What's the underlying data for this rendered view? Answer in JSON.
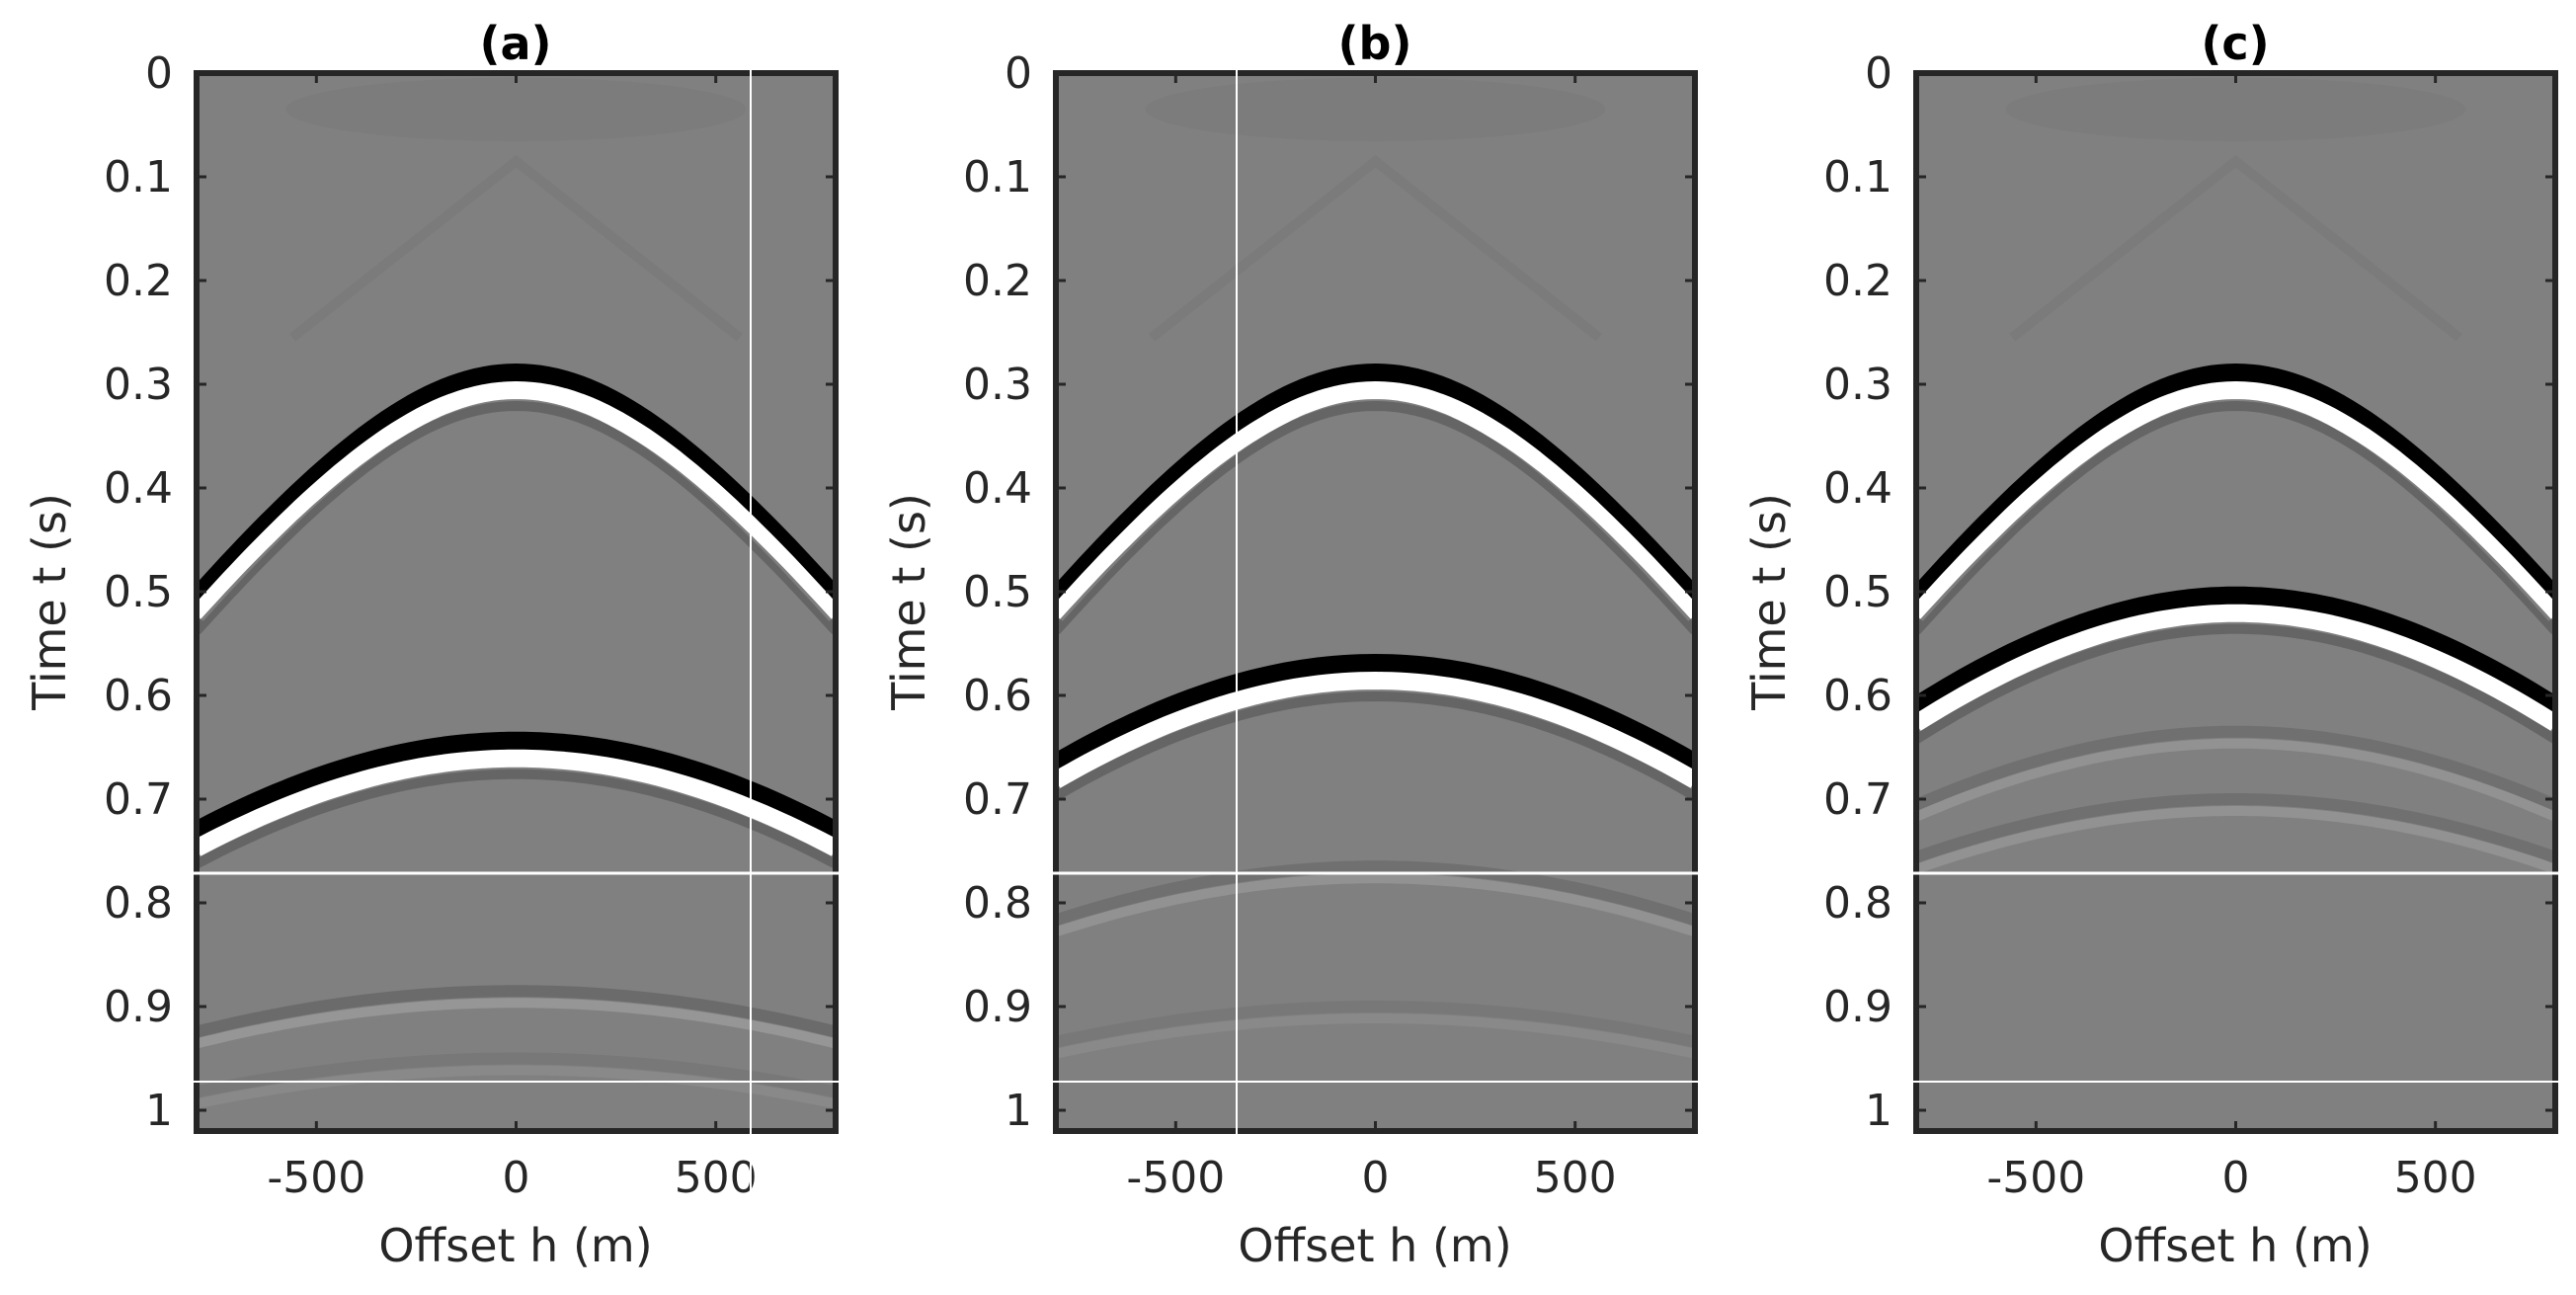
{
  "chart_data": [
    {
      "type": "heatmap",
      "title": "(a)",
      "xlabel": "Offset h (m)",
      "ylabel": "Time t (s)",
      "xlim": [
        -800,
        800
      ],
      "ylim": [
        0,
        1.02
      ],
      "xticks": [
        -500,
        0,
        500
      ],
      "xtick_labels": [
        "-500",
        "0",
        "500"
      ],
      "yticks": [
        0,
        0.1,
        0.2,
        0.3,
        0.4,
        0.5,
        0.6,
        0.7,
        0.8,
        0.9,
        1
      ],
      "ytick_labels": [
        "0",
        "0.1",
        "0.2",
        "0.3",
        "0.4",
        "0.5",
        "0.6",
        "0.7",
        "0.8",
        "0.9",
        "1"
      ],
      "colormap": "gray",
      "events": [
        {
          "name": "reflection-1",
          "t0": 0.3,
          "velocity": 1900,
          "strength": 1.0
        },
        {
          "name": "reflection-2",
          "t0": 0.655,
          "velocity": 2300,
          "strength": 1.0
        },
        {
          "name": "weak-event",
          "t0": 0.885,
          "velocity": 3000,
          "strength": 0.25
        },
        {
          "name": "weak-event",
          "t0": 0.95,
          "velocity": 3200,
          "strength": 0.1
        }
      ]
    },
    {
      "type": "heatmap",
      "title": "(b)",
      "xlabel": "Offset h (m)",
      "ylabel": "Time t (s)",
      "xlim": [
        -800,
        800
      ],
      "ylim": [
        0,
        1.02
      ],
      "xticks": [
        -500,
        0,
        500
      ],
      "xtick_labels": [
        "-500",
        "0",
        "500"
      ],
      "yticks": [
        0,
        0.1,
        0.2,
        0.3,
        0.4,
        0.5,
        0.6,
        0.7,
        0.8,
        0.9,
        1
      ],
      "ytick_labels": [
        "0",
        "0.1",
        "0.2",
        "0.3",
        "0.4",
        "0.5",
        "0.6",
        "0.7",
        "0.8",
        "0.9",
        "1"
      ],
      "colormap": "gray",
      "events": [
        {
          "name": "reflection-1",
          "t0": 0.3,
          "velocity": 1900,
          "strength": 1.0
        },
        {
          "name": "reflection-2",
          "t0": 0.58,
          "velocity": 2300,
          "strength": 1.0
        },
        {
          "name": "weak-event",
          "t0": 0.765,
          "velocity": 2800,
          "strength": 0.2
        },
        {
          "name": "weak-event",
          "t0": 0.9,
          "velocity": 3200,
          "strength": 0.1
        }
      ]
    },
    {
      "type": "heatmap",
      "title": "(c)",
      "xlabel": "Offset h (m)",
      "ylabel": "Time t (s)",
      "xlim": [
        -800,
        800
      ],
      "ylim": [
        0,
        1.02
      ],
      "xticks": [
        -500,
        0,
        500
      ],
      "xtick_labels": [
        "-500",
        "0",
        "500"
      ],
      "yticks": [
        0,
        0.1,
        0.2,
        0.3,
        0.4,
        0.5,
        0.6,
        0.7,
        0.8,
        0.9,
        1
      ],
      "ytick_labels": [
        "0",
        "0.1",
        "0.2",
        "0.3",
        "0.4",
        "0.5",
        "0.6",
        "0.7",
        "0.8",
        "0.9",
        "1"
      ],
      "colormap": "gray",
      "events": [
        {
          "name": "reflection-1",
          "t0": 0.3,
          "velocity": 1900,
          "strength": 1.0
        },
        {
          "name": "reflection-2",
          "t0": 0.515,
          "velocity": 2300,
          "strength": 1.0
        },
        {
          "name": "weak-event",
          "t0": 0.635,
          "velocity": 2600,
          "strength": 0.2
        },
        {
          "name": "weak-event",
          "t0": 0.7,
          "velocity": 2800,
          "strength": 0.2
        }
      ]
    }
  ]
}
